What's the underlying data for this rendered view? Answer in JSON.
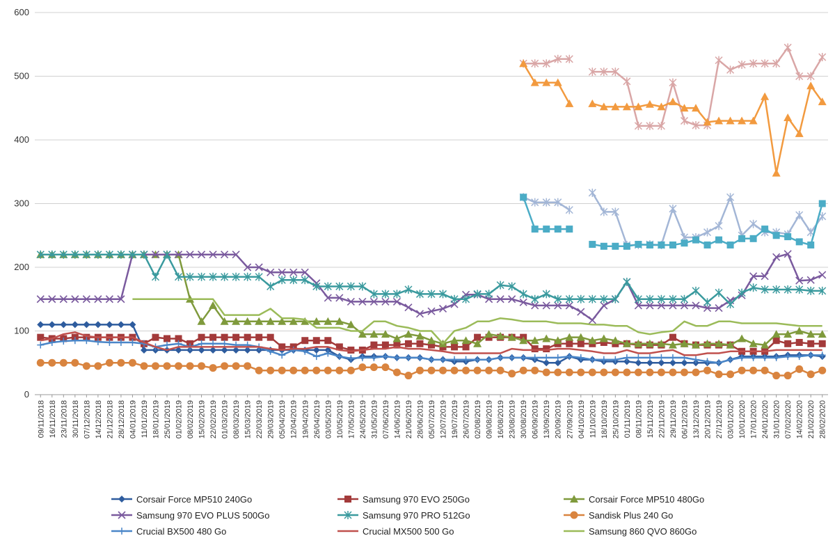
{
  "chart_data": {
    "type": "line",
    "title": "",
    "xlabel": "",
    "ylabel": "",
    "ylim": [
      0,
      600
    ],
    "yticks": [
      0,
      100,
      200,
      300,
      400,
      500,
      600
    ],
    "grid": "horizontal",
    "legend_position": "bottom",
    "categories": [
      "09/11/2018",
      "16/11/2018",
      "23/11/2018",
      "30/11/2018",
      "07/12/2018",
      "14/12/2018",
      "21/12/2018",
      "28/12/2018",
      "04/01/2019",
      "11/01/2019",
      "18/01/2019",
      "25/01/2019",
      "01/02/2019",
      "08/02/2019",
      "15/02/2019",
      "22/02/2019",
      "01/03/2019",
      "08/03/2019",
      "15/03/2019",
      "22/03/2019",
      "29/03/2019",
      "05/04/2019",
      "12/04/2019",
      "19/04/2019",
      "26/04/2019",
      "03/05/2019",
      "10/05/2019",
      "17/05/2019",
      "24/05/2019",
      "31/05/2019",
      "07/06/2019",
      "14/06/2019",
      "21/06/2019",
      "28/06/2019",
      "05/07/2019",
      "12/07/2019",
      "19/07/2019",
      "26/07/2019",
      "02/08/2019",
      "09/08/2019",
      "16/08/2019",
      "23/08/2019",
      "30/08/2019",
      "06/09/2019",
      "13/09/2019",
      "20/09/2019",
      "27/09/2019",
      "04/10/2019",
      "11/10/2019",
      "18/10/2019",
      "25/10/2019",
      "01/11/2019",
      "08/11/2019",
      "15/11/2019",
      "22/11/2019",
      "29/11/2019",
      "06/12/2019",
      "13/12/2019",
      "20/12/2019",
      "27/12/2019",
      "03/01/2020",
      "10/01/2020",
      "17/01/2020",
      "24/01/2020",
      "31/01/2020",
      "07/02/2020",
      "14/02/2020",
      "21/02/2020",
      "28/02/2020"
    ],
    "series": [
      {
        "name": "Corsair Force MP510 240Go",
        "color": "#2e5c9e",
        "marker": "diamond",
        "values": [
          110,
          110,
          110,
          110,
          110,
          110,
          110,
          110,
          110,
          70,
          70,
          70,
          70,
          70,
          70,
          70,
          70,
          70,
          70,
          70,
          70,
          70,
          70,
          70,
          70,
          70,
          60,
          55,
          60,
          60,
          60,
          58,
          58,
          58,
          55,
          55,
          52,
          52,
          55,
          55,
          58,
          58,
          58,
          55,
          50,
          50,
          60,
          55,
          55,
          52,
          52,
          52,
          50,
          50,
          50,
          50,
          50,
          50,
          50,
          50,
          55,
          60,
          60,
          60,
          60,
          62,
          62,
          62,
          60
        ]
      },
      {
        "name": "Samsung 970 EVO 250Go",
        "color": "#a33a3a",
        "marker": "square",
        "values": [
          90,
          88,
          88,
          90,
          90,
          90,
          90,
          90,
          90,
          80,
          90,
          88,
          88,
          80,
          90,
          90,
          90,
          90,
          90,
          90,
          90,
          75,
          75,
          85,
          85,
          85,
          75,
          70,
          70,
          78,
          78,
          78,
          80,
          80,
          78,
          75,
          75,
          75,
          90,
          90,
          90,
          90,
          90,
          72,
          72,
          80,
          80,
          80,
          80,
          82,
          80,
          80,
          78,
          78,
          78,
          90,
          80,
          78,
          78,
          78,
          78,
          68,
          68,
          68,
          85,
          80,
          82,
          80,
          80
        ]
      },
      {
        "name": "Corsair Force MP510 480Go",
        "color": "#7f9a3c",
        "marker": "triangle",
        "values": [
          220,
          220,
          220,
          220,
          220,
          220,
          220,
          220,
          220,
          220,
          220,
          220,
          220,
          150,
          115,
          140,
          115,
          115,
          115,
          115,
          115,
          115,
          115,
          115,
          115,
          115,
          115,
          110,
          95,
          95,
          95,
          88,
          95,
          92,
          85,
          80,
          85,
          85,
          80,
          95,
          92,
          90,
          85,
          85,
          88,
          85,
          90,
          90,
          85,
          88,
          85,
          80,
          80,
          80,
          80,
          78,
          80,
          78,
          80,
          80,
          78,
          88,
          80,
          78,
          95,
          95,
          100,
          95,
          95
        ]
      },
      {
        "name": "Samsung 970 EVO PLUS 500Go",
        "color": "#7a5a9e",
        "marker": "x",
        "values": [
          150,
          150,
          150,
          150,
          150,
          150,
          150,
          150,
          220,
          220,
          220,
          220,
          220,
          220,
          220,
          220,
          220,
          220,
          200,
          200,
          192,
          192,
          192,
          192,
          175,
          152,
          152,
          146,
          146,
          146,
          146,
          146,
          137,
          127,
          131,
          135,
          142,
          157,
          157,
          150,
          150,
          150,
          145,
          140,
          140,
          140,
          140,
          130,
          117,
          140,
          150,
          177,
          140,
          140,
          140,
          140,
          140,
          140,
          136,
          136,
          148,
          156,
          186,
          186,
          216,
          221,
          179,
          180,
          188
        ]
      },
      {
        "name": "Samsung 970 PRO 512Go",
        "color": "#3a9a9e",
        "marker": "star",
        "values": [
          220,
          220,
          220,
          220,
          220,
          220,
          220,
          220,
          220,
          220,
          185,
          220,
          185,
          185,
          185,
          185,
          185,
          185,
          185,
          185,
          170,
          180,
          180,
          180,
          170,
          170,
          170,
          170,
          170,
          158,
          158,
          158,
          165,
          158,
          158,
          158,
          150,
          150,
          158,
          158,
          172,
          170,
          158,
          150,
          158,
          150,
          150,
          150,
          150,
          150,
          150,
          177,
          150,
          150,
          150,
          150,
          150,
          163,
          145,
          160,
          142,
          160,
          168,
          165,
          165,
          165,
          165,
          163,
          163
        ]
      },
      {
        "name": "Sandisk Plus 240 Go",
        "color": "#d9843f",
        "marker": "circle",
        "values": [
          50,
          50,
          50,
          50,
          45,
          45,
          50,
          50,
          50,
          45,
          45,
          45,
          45,
          45,
          45,
          42,
          45,
          45,
          45,
          38,
          38,
          38,
          38,
          38,
          38,
          38,
          38,
          38,
          43,
          43,
          43,
          35,
          30,
          38,
          38,
          38,
          38,
          38,
          38,
          38,
          38,
          33,
          38,
          38,
          35,
          35,
          35,
          35,
          35,
          35,
          35,
          35,
          35,
          35,
          35,
          35,
          35,
          35,
          38,
          32,
          32,
          38,
          38,
          38,
          30,
          30,
          40,
          32,
          38
        ]
      },
      {
        "name": "Crucial BX500 480 Go",
        "color": "#4a86c8",
        "marker": "plus",
        "values": [
          78,
          82,
          84,
          85,
          85,
          83,
          82,
          82,
          82,
          80,
          75,
          78,
          80,
          75,
          80,
          80,
          80,
          78,
          78,
          75,
          68,
          62,
          70,
          68,
          60,
          65,
          60,
          57,
          58,
          58,
          60,
          58,
          58,
          58,
          55,
          55,
          55,
          55,
          55,
          55,
          58,
          58,
          58,
          58,
          58,
          58,
          60,
          58,
          55,
          55,
          55,
          58,
          58,
          58,
          58,
          58,
          58,
          55,
          52,
          50,
          55,
          58,
          58,
          58,
          58,
          60,
          60,
          62,
          62
        ]
      },
      {
        "name": "Crucial MX500 500 Go",
        "color": "#c0504d",
        "marker": "none",
        "values": [
          85,
          88,
          95,
          98,
          92,
          90,
          90,
          90,
          90,
          82,
          75,
          70,
          75,
          75,
          75,
          75,
          75,
          75,
          75,
          75,
          72,
          70,
          72,
          72,
          75,
          75,
          70,
          68,
          70,
          72,
          72,
          75,
          72,
          72,
          70,
          68,
          65,
          65,
          65,
          65,
          65,
          72,
          70,
          70,
          70,
          72,
          72,
          70,
          68,
          65,
          65,
          70,
          65,
          65,
          68,
          70,
          62,
          62,
          65,
          65,
          68,
          68,
          68,
          68,
          70,
          70,
          70,
          70,
          70
        ]
      },
      {
        "name": "Samsung 860 QVO 860Go",
        "color": "#9bbb59",
        "marker": "none",
        "values": [
          null,
          null,
          null,
          null,
          null,
          null,
          null,
          null,
          150,
          150,
          150,
          150,
          150,
          150,
          150,
          150,
          125,
          125,
          125,
          125,
          135,
          120,
          120,
          118,
          105,
          105,
          105,
          100,
          100,
          115,
          115,
          108,
          105,
          100,
          100,
          80,
          100,
          105,
          115,
          115,
          120,
          118,
          115,
          115,
          115,
          112,
          112,
          112,
          110,
          110,
          108,
          108,
          98,
          95,
          98,
          100,
          115,
          108,
          108,
          115,
          115,
          112,
          112,
          112,
          112,
          110,
          108,
          108,
          108
        ]
      },
      {
        "name": "",
        "color": "#d9a6a6",
        "marker": "star",
        "values": [
          null,
          null,
          null,
          null,
          null,
          null,
          null,
          null,
          null,
          null,
          null,
          null,
          null,
          null,
          null,
          null,
          null,
          null,
          null,
          null,
          null,
          null,
          null,
          null,
          null,
          null,
          null,
          null,
          null,
          null,
          null,
          null,
          null,
          null,
          null,
          null,
          null,
          null,
          null,
          null,
          null,
          null,
          520,
          520,
          520,
          527,
          527,
          null,
          507,
          507,
          507,
          492,
          422,
          422,
          422,
          490,
          430,
          423,
          423,
          525,
          510,
          518,
          520,
          520,
          520,
          545,
          500,
          500,
          530
        ]
      },
      {
        "name": "",
        "color": "#f29a3f",
        "marker": "triangle",
        "values": [
          null,
          null,
          null,
          null,
          null,
          null,
          null,
          null,
          null,
          null,
          null,
          null,
          null,
          null,
          null,
          null,
          null,
          null,
          null,
          null,
          null,
          null,
          null,
          null,
          null,
          null,
          null,
          null,
          null,
          null,
          null,
          null,
          null,
          null,
          null,
          null,
          null,
          null,
          null,
          null,
          null,
          null,
          520,
          490,
          490,
          490,
          457,
          null,
          457,
          452,
          452,
          452,
          452,
          456,
          452,
          460,
          450,
          450,
          428,
          430,
          430,
          430,
          430,
          468,
          348,
          435,
          410,
          485,
          460
        ]
      },
      {
        "name": "",
        "color": "#a3b6d6",
        "marker": "star",
        "values": [
          null,
          null,
          null,
          null,
          null,
          null,
          null,
          null,
          null,
          null,
          null,
          null,
          null,
          null,
          null,
          null,
          null,
          null,
          null,
          null,
          null,
          null,
          null,
          null,
          null,
          null,
          null,
          null,
          null,
          null,
          null,
          null,
          null,
          null,
          null,
          null,
          null,
          null,
          null,
          null,
          null,
          null,
          310,
          302,
          302,
          302,
          290,
          null,
          317,
          287,
          287,
          235,
          235,
          236,
          235,
          292,
          247,
          247,
          255,
          265,
          310,
          250,
          268,
          255,
          255,
          252,
          282,
          255,
          280
        ]
      },
      {
        "name": "",
        "color": "#4bacc6",
        "marker": "square",
        "values": [
          null,
          null,
          null,
          null,
          null,
          null,
          null,
          null,
          null,
          null,
          null,
          null,
          null,
          null,
          null,
          null,
          null,
          null,
          null,
          null,
          null,
          null,
          null,
          null,
          null,
          null,
          null,
          null,
          null,
          null,
          null,
          null,
          null,
          null,
          null,
          null,
          null,
          null,
          null,
          null,
          null,
          null,
          310,
          260,
          260,
          260,
          260,
          null,
          236,
          233,
          233,
          233,
          236,
          235,
          235,
          235,
          238,
          243,
          235,
          243,
          235,
          245,
          245,
          260,
          250,
          248,
          240,
          235,
          300
        ]
      }
    ]
  }
}
